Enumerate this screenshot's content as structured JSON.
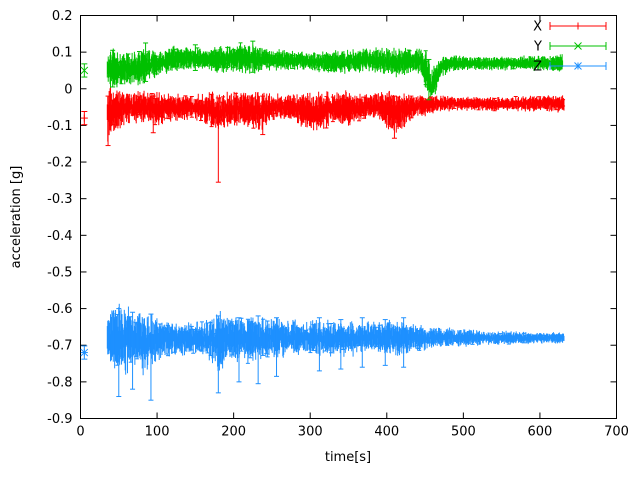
{
  "figure": {
    "background_color": "#ffffff",
    "plot_border_color": "#000000"
  },
  "chart_data": {
    "type": "line",
    "style": "errorbars",
    "title": "",
    "xlabel": "time[s]",
    "ylabel": "acceleration [g]",
    "xlim": [
      0,
      700
    ],
    "ylim": [
      -0.9,
      0.2
    ],
    "grid": false,
    "legend_position": "top-right-inside",
    "x_ticks": [
      {
        "v": 0,
        "label": "0"
      },
      {
        "v": 100,
        "label": "100"
      },
      {
        "v": 200,
        "label": "200"
      },
      {
        "v": 300,
        "label": "300"
      },
      {
        "v": 400,
        "label": "400"
      },
      {
        "v": 500,
        "label": "500"
      },
      {
        "v": 600,
        "label": "600"
      },
      {
        "v": 700,
        "label": "700"
      }
    ],
    "y_ticks": [
      {
        "v": -0.9,
        "label": "-0.9"
      },
      {
        "v": -0.8,
        "label": "-0.8"
      },
      {
        "v": -0.7,
        "label": "-0.7"
      },
      {
        "v": -0.6,
        "label": "-0.6"
      },
      {
        "v": -0.5,
        "label": "-0.5"
      },
      {
        "v": -0.4,
        "label": "-0.4"
      },
      {
        "v": -0.3,
        "label": "-0.3"
      },
      {
        "v": -0.2,
        "label": "-0.2"
      },
      {
        "v": -0.1,
        "label": "-0.1"
      },
      {
        "v": 0,
        "label": "0"
      },
      {
        "v": 0.1,
        "label": "0.1"
      },
      {
        "v": 0.2,
        "label": "0.2"
      }
    ],
    "series": [
      {
        "name": "X",
        "color": "#ff0000",
        "marker": "plus",
        "initial_point": {
          "t": 5,
          "value": -0.08,
          "error": 0.018
        },
        "band": {
          "t_start": 35,
          "t_end": 632,
          "control_points": [
            [
              35,
              -0.07,
              0.06
            ],
            [
              45,
              -0.06,
              0.05
            ],
            [
              60,
              -0.05,
              0.04
            ],
            [
              80,
              -0.05,
              0.035
            ],
            [
              100,
              -0.055,
              0.04
            ],
            [
              120,
              -0.05,
              0.03
            ],
            [
              150,
              -0.05,
              0.03
            ],
            [
              178,
              -0.06,
              0.05
            ],
            [
              182,
              -0.07,
              0.06
            ],
            [
              186,
              -0.06,
              0.04
            ],
            [
              210,
              -0.055,
              0.04
            ],
            [
              235,
              -0.06,
              0.045
            ],
            [
              255,
              -0.05,
              0.03
            ],
            [
              275,
              -0.05,
              0.03
            ],
            [
              300,
              -0.065,
              0.045
            ],
            [
              315,
              -0.06,
              0.045
            ],
            [
              330,
              -0.05,
              0.035
            ],
            [
              350,
              -0.055,
              0.04
            ],
            [
              370,
              -0.05,
              0.03
            ],
            [
              390,
              -0.045,
              0.03
            ],
            [
              408,
              -0.065,
              0.05
            ],
            [
              418,
              -0.06,
              0.045
            ],
            [
              432,
              -0.05,
              0.03
            ],
            [
              448,
              -0.045,
              0.025
            ],
            [
              470,
              -0.04,
              0.018
            ],
            [
              500,
              -0.04,
              0.016
            ],
            [
              540,
              -0.042,
              0.016
            ],
            [
              580,
              -0.04,
              0.018
            ],
            [
              610,
              -0.04,
              0.02
            ],
            [
              632,
              -0.04,
              0.02
            ]
          ]
        },
        "spikes": [
          [
            36,
            -0.155,
            -0.02
          ],
          [
            95,
            -0.12,
            -0.02
          ],
          [
            180,
            -0.255,
            -0.025
          ],
          [
            238,
            -0.125,
            -0.02
          ],
          [
            410,
            -0.135,
            -0.02
          ]
        ]
      },
      {
        "name": "Y",
        "color": "#00c000",
        "marker": "cross",
        "initial_point": {
          "t": 5,
          "value": 0.05,
          "error": 0.018
        },
        "band": {
          "t_start": 35,
          "t_end": 630,
          "control_points": [
            [
              35,
              0.055,
              0.05
            ],
            [
              45,
              0.05,
              0.045
            ],
            [
              60,
              0.055,
              0.04
            ],
            [
              80,
              0.06,
              0.04
            ],
            [
              100,
              0.07,
              0.03
            ],
            [
              120,
              0.08,
              0.03
            ],
            [
              140,
              0.085,
              0.03
            ],
            [
              160,
              0.08,
              0.025
            ],
            [
              185,
              0.08,
              0.03
            ],
            [
              205,
              0.085,
              0.035
            ],
            [
              225,
              0.08,
              0.035
            ],
            [
              250,
              0.08,
              0.025
            ],
            [
              275,
              0.078,
              0.022
            ],
            [
              300,
              0.075,
              0.022
            ],
            [
              325,
              0.072,
              0.025
            ],
            [
              350,
              0.075,
              0.028
            ],
            [
              375,
              0.08,
              0.028
            ],
            [
              400,
              0.075,
              0.03
            ],
            [
              415,
              0.07,
              0.035
            ],
            [
              430,
              0.078,
              0.028
            ],
            [
              445,
              0.075,
              0.03
            ],
            [
              452,
              0.04,
              0.05
            ],
            [
              458,
              0.005,
              0.035
            ],
            [
              464,
              0.03,
              0.04
            ],
            [
              472,
              0.065,
              0.025
            ],
            [
              490,
              0.07,
              0.018
            ],
            [
              520,
              0.07,
              0.016
            ],
            [
              560,
              0.07,
              0.016
            ],
            [
              600,
              0.07,
              0.018
            ],
            [
              630,
              0.07,
              0.02
            ]
          ]
        },
        "spikes": [
          [
            42,
            0.005,
            0.105
          ],
          [
            85,
            0.02,
            0.125
          ],
          [
            150,
            0.05,
            0.12
          ],
          [
            225,
            0.045,
            0.13
          ],
          [
            455,
            -0.03,
            0.08
          ]
        ]
      },
      {
        "name": "Z",
        "color": "#1e90ff",
        "marker": "asterisk",
        "initial_point": {
          "t": 5,
          "value": -0.72,
          "error": 0.018
        },
        "band": {
          "t_start": 35,
          "t_end": 632,
          "control_points": [
            [
              35,
              -0.69,
              0.055
            ],
            [
              45,
              -0.68,
              0.075
            ],
            [
              55,
              -0.685,
              0.08
            ],
            [
              70,
              -0.68,
              0.07
            ],
            [
              85,
              -0.69,
              0.075
            ],
            [
              95,
              -0.685,
              0.06
            ],
            [
              110,
              -0.68,
              0.042
            ],
            [
              130,
              -0.682,
              0.038
            ],
            [
              155,
              -0.68,
              0.035
            ],
            [
              175,
              -0.685,
              0.055
            ],
            [
              182,
              -0.69,
              0.07
            ],
            [
              192,
              -0.68,
              0.05
            ],
            [
              210,
              -0.682,
              0.055
            ],
            [
              228,
              -0.685,
              0.06
            ],
            [
              248,
              -0.68,
              0.05
            ],
            [
              268,
              -0.68,
              0.042
            ],
            [
              290,
              -0.68,
              0.04
            ],
            [
              312,
              -0.682,
              0.045
            ],
            [
              335,
              -0.68,
              0.04
            ],
            [
              358,
              -0.68,
              0.04
            ],
            [
              380,
              -0.678,
              0.035
            ],
            [
              400,
              -0.68,
              0.04
            ],
            [
              418,
              -0.682,
              0.042
            ],
            [
              435,
              -0.68,
              0.032
            ],
            [
              455,
              -0.68,
              0.026
            ],
            [
              475,
              -0.679,
              0.022
            ],
            [
              500,
              -0.68,
              0.02
            ],
            [
              530,
              -0.68,
              0.017
            ],
            [
              560,
              -0.68,
              0.015
            ],
            [
              595,
              -0.68,
              0.013
            ],
            [
              632,
              -0.68,
              0.012
            ]
          ]
        },
        "spikes": [
          [
            50,
            -0.84,
            -0.6
          ],
          [
            68,
            -0.82,
            -0.61
          ],
          [
            92,
            -0.85,
            -0.615
          ],
          [
            180,
            -0.83,
            -0.62
          ],
          [
            207,
            -0.8,
            -0.625
          ],
          [
            232,
            -0.805,
            -0.62
          ],
          [
            256,
            -0.785,
            -0.625
          ],
          [
            312,
            -0.77,
            -0.625
          ],
          [
            340,
            -0.765,
            -0.63
          ],
          [
            368,
            -0.76,
            -0.625
          ],
          [
            398,
            -0.755,
            -0.63
          ],
          [
            422,
            -0.76,
            -0.625
          ]
        ]
      }
    ]
  }
}
